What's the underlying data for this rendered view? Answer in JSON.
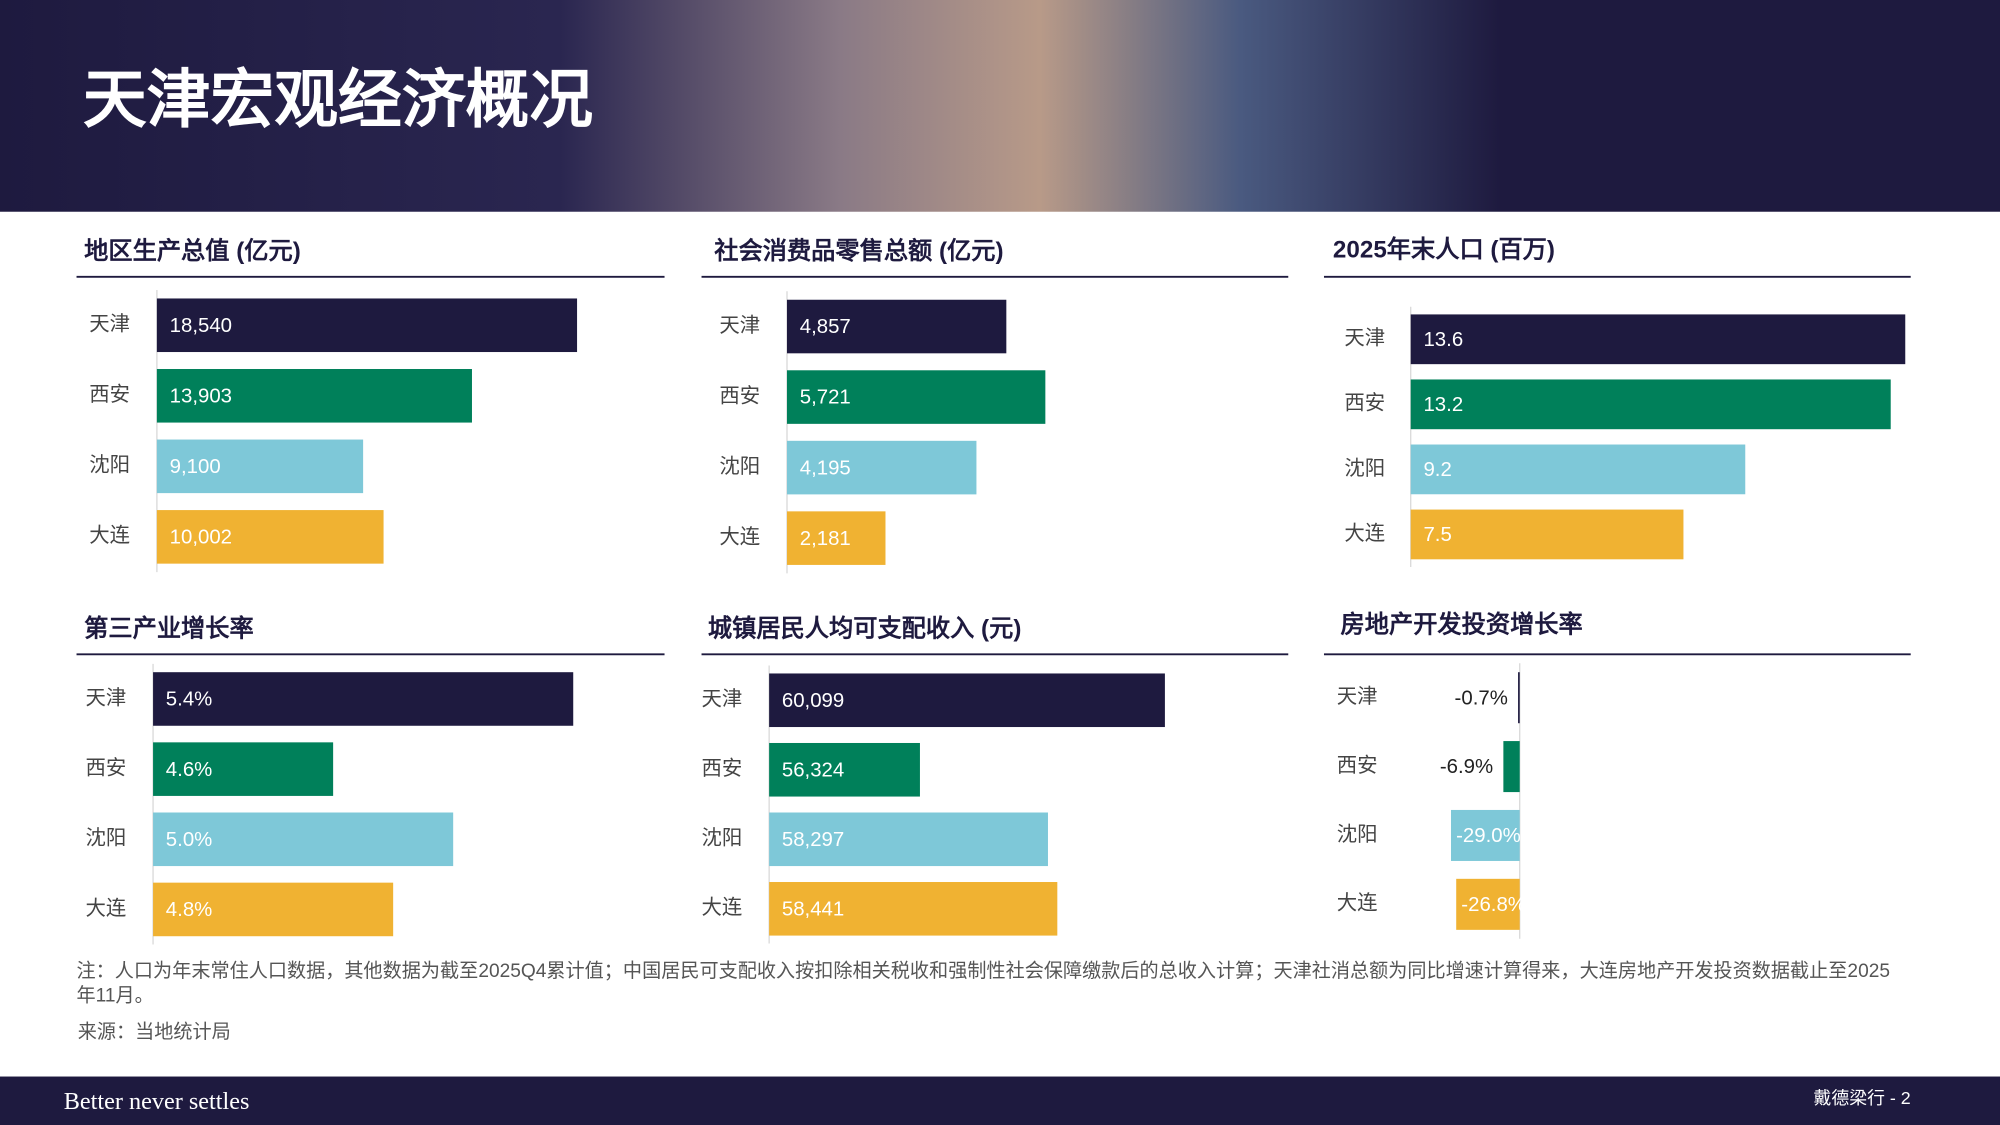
{
  "title": "天津宏观经济概况",
  "chart_data": [
    {
      "type": "bar",
      "orientation": "horizontal",
      "title": "地区生产总值 (亿元)",
      "categories": [
        "天津",
        "西安",
        "沈阳",
        "大连"
      ],
      "values": [
        18540,
        13903,
        9100,
        10002
      ],
      "value_labels": [
        "18,540",
        "13,903",
        "9,100",
        "10,002"
      ],
      "colors": [
        "#1e1a3f",
        "#00805a",
        "#7ec8d8",
        "#f0b232"
      ],
      "xlim": [
        0,
        22400
      ]
    },
    {
      "type": "bar",
      "orientation": "horizontal",
      "title": "社会消费品零售总额 (亿元)",
      "categories": [
        "天津",
        "西安",
        "沈阳",
        "大连"
      ],
      "values": [
        4857,
        5721,
        4195,
        2181
      ],
      "value_labels": [
        "4,857",
        "5,721",
        "4,195",
        "2,181"
      ],
      "colors": [
        "#1e1a3f",
        "#00805a",
        "#7ec8d8",
        "#f0b232"
      ],
      "xlim": [
        0,
        11100
      ]
    },
    {
      "type": "bar",
      "orientation": "horizontal",
      "title": "2025年末人口 (百万)",
      "categories": [
        "天津",
        "西安",
        "沈阳",
        "大连"
      ],
      "values": [
        13.6,
        13.2,
        9.2,
        7.5
      ],
      "colors": [
        "#1e1a3f",
        "#00805a",
        "#7ec8d8",
        "#f0b232"
      ],
      "xlim": [
        0,
        13.75
      ]
    },
    {
      "type": "bar",
      "orientation": "horizontal",
      "title": "第三产业增长率",
      "categories": [
        "天津",
        "西安",
        "沈阳",
        "大连"
      ],
      "values": [
        5.4,
        4.6,
        5.0,
        4.8
      ],
      "value_labels": [
        "5.4%",
        "4.6%",
        "5.0%",
        "4.8%"
      ],
      "colors": [
        "#1e1a3f",
        "#00805a",
        "#7ec8d8",
        "#f0b232"
      ],
      "xlim": [
        4.0,
        5.7
      ]
    },
    {
      "type": "bar",
      "orientation": "horizontal",
      "title": "城镇居民人均可支配收入 (元)",
      "categories": [
        "天津",
        "西安",
        "沈阳",
        "大连"
      ],
      "values": [
        60099,
        56324,
        58297,
        58441
      ],
      "value_labels": [
        "60,099",
        "56,324",
        "58,297",
        "58,441"
      ],
      "colors": [
        "#1e1a3f",
        "#00805a",
        "#7ec8d8",
        "#f0b232"
      ],
      "xlim": [
        54000,
        62000
      ]
    },
    {
      "type": "bar",
      "orientation": "horizontal",
      "title": "房地产开发投资增长率",
      "categories": [
        "天津",
        "西安",
        "沈阳",
        "大连"
      ],
      "values": [
        -0.7,
        -6.9,
        -29.0,
        -26.8
      ],
      "value_labels": [
        "-0.7%",
        "-6.9%",
        "-29.0%",
        "-26.8%"
      ],
      "colors": [
        "#1e1a3f",
        "#00805a",
        "#7ec8d8",
        "#f0b232"
      ],
      "xlim": [
        -46,
        165
      ]
    }
  ],
  "note": "注：人口为年末常住人口数据，其他数据为截至2025Q4累计值；中国居民可支配收入按扣除相关税收和强制性社会保障缴款后的总收入计算；天津社消总额为同比增速计算得来，大连房地产开发投资数据截止至2025年11月。",
  "source": "来源：当地统计局",
  "footer": {
    "brand": "Better never settles",
    "page": "戴德梁行 - 2"
  }
}
